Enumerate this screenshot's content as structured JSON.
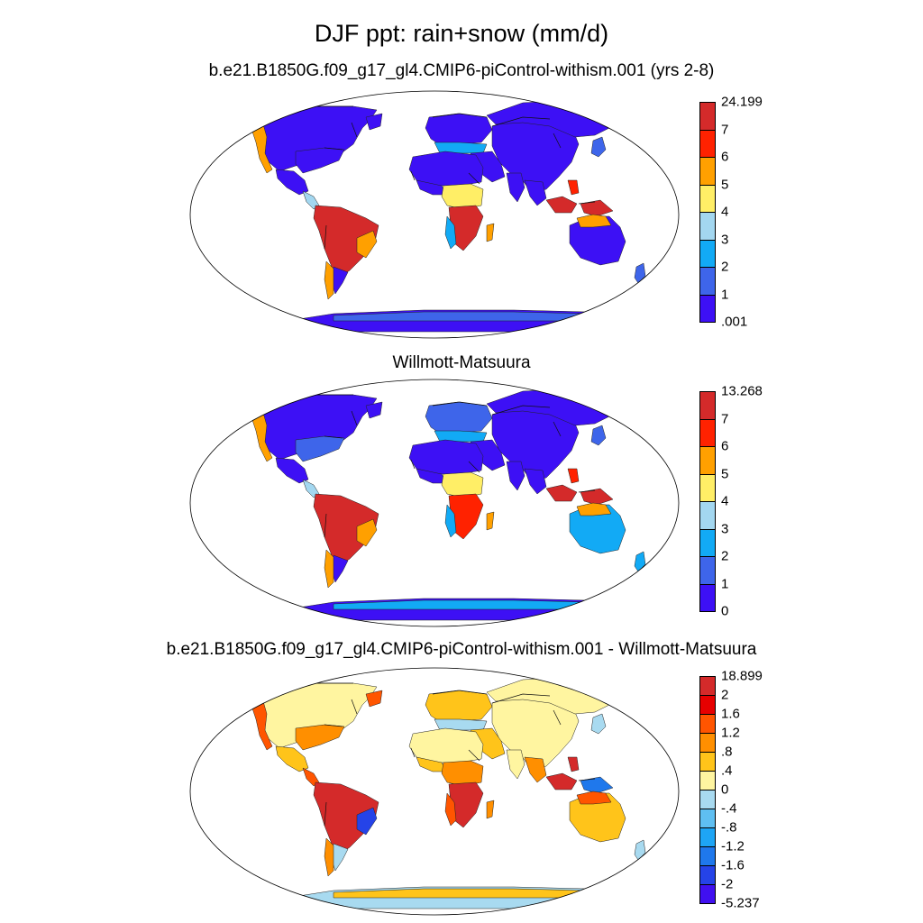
{
  "main_title": "DJF ppt: rain+snow (mm/d)",
  "panels": [
    {
      "title": "b.e21.B1850G.f09_g17_gl4.CMIP6-piControl-withism.001 (yrs 2-8)",
      "colorbar": {
        "labels": [
          "24.199",
          "7",
          "6",
          "5",
          "4",
          "3",
          "2",
          "1",
          ".001"
        ],
        "colors": [
          "#d42a2a",
          "#ff2200",
          "#ffa000",
          "#ffee66",
          "#a3d7f0",
          "#12aaf5",
          "#3e65ea",
          "#3d10f5"
        ]
      },
      "regions": {
        "north_america": "#3d10f5",
        "us_east": "#3d10f5",
        "pac_nw": "#ffa000",
        "greenland_s": "#3d10f5",
        "mexico": "#3d10f5",
        "central_america": "#a3d7f0",
        "south_america": "#d42a2a",
        "sa_east": "#ffa000",
        "patagonia": "#3d10f5",
        "chile_s": "#ffa000",
        "europe": "#3d10f5",
        "europe_south": "#12aaf5",
        "asia": "#3d10f5",
        "siberia": "#3d10f5",
        "middle_east": "#3d10f5",
        "india": "#3d10f5",
        "se_asia": "#3d10f5",
        "sahara": "#3d10f5",
        "west_africa": "#3d10f5",
        "central_africa": "#ffee66",
        "southern_africa": "#d42a2a",
        "sw_africa": "#12aaf5",
        "madagascar": "#ffa000",
        "indonesia": "#d42a2a",
        "new_guinea": "#d42a2a",
        "philippines": "#ff2200",
        "japan": "#3e65ea",
        "australia": "#3d10f5",
        "aus_north": "#ffa000",
        "new_zealand": "#3e65ea",
        "antarctica": "#3d10f5",
        "antarctica_coast": "#3e65ea"
      }
    },
    {
      "title": "Willmott-Matsuura",
      "colorbar": {
        "labels": [
          "13.268",
          "7",
          "6",
          "5",
          "4",
          "3",
          "2",
          "1",
          "0"
        ],
        "colors": [
          "#d42a2a",
          "#ff2200",
          "#ffa000",
          "#ffee66",
          "#a3d7f0",
          "#12aaf5",
          "#3e65ea",
          "#3d10f5"
        ]
      },
      "regions": {
        "north_america": "#3d10f5",
        "us_east": "#3e65ea",
        "pac_nw": "#ffa000",
        "greenland_s": "#3d10f5",
        "mexico": "#3d10f5",
        "central_america": "#a3d7f0",
        "south_america": "#d42a2a",
        "sa_east": "#ffa000",
        "patagonia": "#3d10f5",
        "chile_s": "#ffa000",
        "europe": "#3e65ea",
        "europe_south": "#12aaf5",
        "asia": "#3d10f5",
        "siberia": "#3d10f5",
        "middle_east": "#3d10f5",
        "india": "#3d10f5",
        "se_asia": "#3d10f5",
        "sahara": "#3d10f5",
        "west_africa": "#3d10f5",
        "central_africa": "#ffee66",
        "southern_africa": "#ff2200",
        "sw_africa": "#12aaf5",
        "madagascar": "#ffa000",
        "indonesia": "#d42a2a",
        "new_guinea": "#d42a2a",
        "philippines": "#ff2200",
        "japan": "#3e65ea",
        "australia": "#12aaf5",
        "aus_north": "#ffa000",
        "new_zealand": "#12aaf5",
        "antarctica": "#3d10f5",
        "antarctica_coast": "#12aaf5"
      }
    },
    {
      "title": "b.e21.B1850G.f09_g17_gl4.CMIP6-piControl-withism.001 - Willmott-Matsuura",
      "colorbar": {
        "labels": [
          "18.899",
          "2",
          "1.6",
          "1.2",
          ".8",
          ".4",
          "0",
          "-.4",
          "-.8",
          "-1.2",
          "-1.6",
          "-2",
          "-5.237"
        ],
        "colors": [
          "#d42a2a",
          "#e60000",
          "#ff5500",
          "#ff8f00",
          "#ffc41a",
          "#fff5a0",
          "#a8daf0",
          "#5fbff2",
          "#1ea5f5",
          "#1f78ec",
          "#2543e8",
          "#4010f0"
        ]
      },
      "regions": {
        "north_america": "#fff5a0",
        "us_east": "#ff8f00",
        "pac_nw": "#ff5500",
        "greenland_s": "#ff5500",
        "mexico": "#ffc41a",
        "central_america": "#ff5500",
        "south_america": "#d42a2a",
        "sa_east": "#2543e8",
        "patagonia": "#a8daf0",
        "chile_s": "#ff8f00",
        "europe": "#ffc41a",
        "europe_south": "#a8daf0",
        "asia": "#fff5a0",
        "siberia": "#fff5a0",
        "middle_east": "#ffc41a",
        "india": "#fff5a0",
        "se_asia": "#ff8f00",
        "sahara": "#fff5a0",
        "west_africa": "#ffc41a",
        "central_africa": "#ff8f00",
        "southern_africa": "#d42a2a",
        "sw_africa": "#ff5500",
        "madagascar": "#ff8f00",
        "indonesia": "#d42a2a",
        "new_guinea": "#1f78ec",
        "philippines": "#d42a2a",
        "japan": "#a8daf0",
        "australia": "#ffc41a",
        "aus_north": "#ff5500",
        "new_zealand": "#a8daf0",
        "antarctica": "#a8daf0",
        "antarctica_coast": "#ffc41a"
      }
    }
  ]
}
